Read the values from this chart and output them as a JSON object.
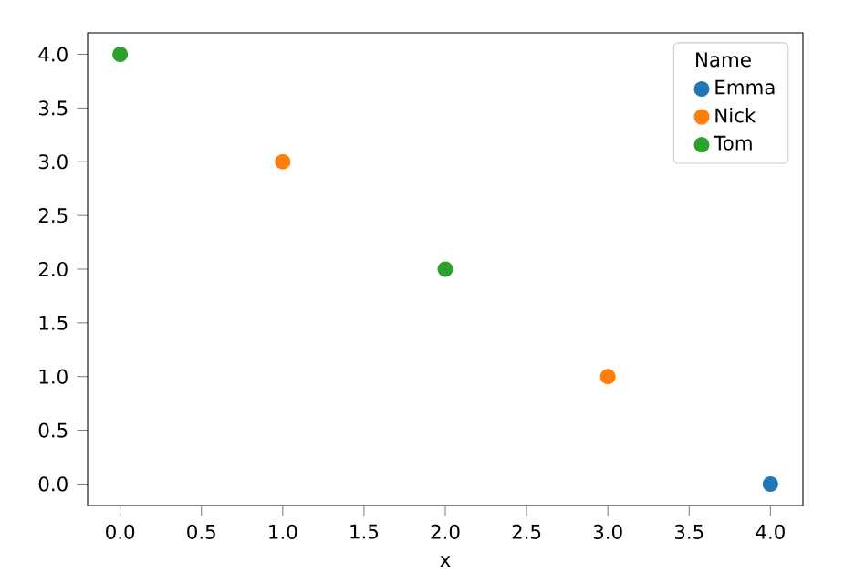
{
  "chart_data": {
    "type": "scatter",
    "xlabel": "x",
    "legend_title": "Name",
    "legend": "top right",
    "grid": false,
    "xlim": [
      -0.2,
      4.2
    ],
    "ylim": [
      -0.2,
      4.2
    ],
    "xticks": [
      {
        "value": 0,
        "label": "0.0"
      },
      {
        "value": 0.5,
        "label": "0.5"
      },
      {
        "value": 1,
        "label": "1.0"
      },
      {
        "value": 1.5,
        "label": "1.5"
      },
      {
        "value": 2,
        "label": "2.0"
      },
      {
        "value": 2.5,
        "label": "2.5"
      },
      {
        "value": 3,
        "label": "3.0"
      },
      {
        "value": 3.5,
        "label": "3.5"
      },
      {
        "value": 4,
        "label": "4.0"
      }
    ],
    "yticks": [
      {
        "value": 0,
        "label": "0.0"
      },
      {
        "value": 0.5,
        "label": "0.5"
      },
      {
        "value": 1,
        "label": "1.0"
      },
      {
        "value": 1.5,
        "label": "1.5"
      },
      {
        "value": 2,
        "label": "2.0"
      },
      {
        "value": 2.5,
        "label": "2.5"
      },
      {
        "value": 3,
        "label": "3.0"
      },
      {
        "value": 3.5,
        "label": "3.5"
      },
      {
        "value": 4,
        "label": "4.0"
      }
    ],
    "series": [
      {
        "name": "Emma",
        "color": "#1f77b4",
        "x": [
          4
        ],
        "values": [
          0
        ]
      },
      {
        "name": "Nick",
        "color": "#ff7f0e",
        "x": [
          1,
          3
        ],
        "values": [
          3,
          1
        ]
      },
      {
        "name": "Tom",
        "color": "#2ca02c",
        "x": [
          0,
          2
        ],
        "values": [
          4,
          2
        ]
      }
    ]
  }
}
